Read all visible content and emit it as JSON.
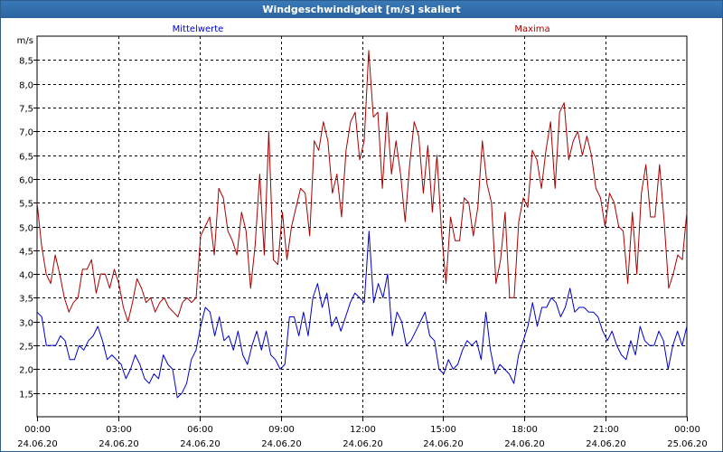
{
  "window": {
    "title": "Windgeschwindigkeit [m/s] skaliert"
  },
  "colors": {
    "series_mean": "#0000cc",
    "series_max": "#aa0000",
    "grid": "#000000"
  },
  "chart_data": {
    "type": "line",
    "ylabel": "m/s",
    "ylim": [
      1.0,
      9.0
    ],
    "y_ticks": [
      1.5,
      2.0,
      2.5,
      3.0,
      3.5,
      4.0,
      4.5,
      5.0,
      5.5,
      6.0,
      6.5,
      7.0,
      7.5,
      8.0,
      8.5
    ],
    "y_tick_labels": [
      "1,5",
      "2,0",
      "2,5",
      "3,0",
      "3,5",
      "4,0",
      "4,5",
      "5,0",
      "5,5",
      "6,0",
      "6,5",
      "7,0",
      "7,5",
      "8,0",
      "8,5"
    ],
    "x_ticks": [
      {
        "time": "00:00",
        "date": "24.06.20"
      },
      {
        "time": "03:00",
        "date": "24.06.20"
      },
      {
        "time": "06:00",
        "date": "24.06.20"
      },
      {
        "time": "09:00",
        "date": "24.06.20"
      },
      {
        "time": "12:00",
        "date": "24.06.20"
      },
      {
        "time": "15:00",
        "date": "24.06.20"
      },
      {
        "time": "18:00",
        "date": "24.06.20"
      },
      {
        "time": "21:00",
        "date": "24.06.20"
      },
      {
        "time": "00:00",
        "date": "25.06.20"
      }
    ],
    "grid": true,
    "legend_placement": "top",
    "series": [
      {
        "name": "Mittelwerte",
        "color": "#0000cc",
        "values": [
          3.2,
          3.1,
          2.5,
          2.5,
          2.5,
          2.7,
          2.6,
          2.2,
          2.2,
          2.5,
          2.4,
          2.6,
          2.7,
          2.9,
          2.6,
          2.2,
          2.3,
          2.2,
          2.1,
          1.8,
          2.0,
          2.3,
          2.1,
          1.8,
          1.7,
          1.9,
          1.8,
          2.3,
          2.1,
          2.0,
          1.4,
          1.5,
          1.7,
          2.2,
          2.4,
          2.9,
          3.3,
          3.2,
          2.7,
          3.1,
          2.6,
          2.7,
          2.4,
          2.8,
          2.3,
          2.1,
          2.5,
          2.8,
          2.4,
          2.8,
          2.3,
          2.2,
          2.0,
          2.1,
          3.1,
          3.1,
          2.7,
          3.2,
          2.7,
          3.5,
          3.8,
          3.3,
          3.6,
          2.9,
          3.1,
          2.8,
          3.1,
          3.4,
          3.6,
          3.5,
          3.4,
          4.9,
          3.4,
          3.8,
          3.5,
          4.0,
          2.7,
          3.2,
          3.0,
          2.5,
          2.6,
          2.8,
          3.0,
          3.2,
          2.7,
          2.6,
          2.0,
          1.9,
          2.2,
          2.0,
          2.1,
          2.4,
          2.6,
          2.5,
          2.6,
          2.2,
          3.2,
          2.4,
          1.9,
          2.1,
          2.0,
          1.9,
          1.7,
          2.3,
          2.6,
          2.9,
          3.4,
          2.9,
          3.3,
          3.3,
          3.5,
          3.4,
          3.1,
          3.3,
          3.7,
          3.2,
          3.3,
          3.3,
          3.2,
          3.2,
          3.1,
          2.8,
          2.6,
          2.8,
          2.5,
          2.3,
          2.2,
          2.6,
          2.3,
          2.9,
          2.6,
          2.5,
          2.5,
          2.8,
          2.6,
          2.0,
          2.5,
          2.8,
          2.5,
          2.9
        ]
      },
      {
        "name": "Maxima",
        "color": "#aa0000",
        "values": [
          5.5,
          4.6,
          4.0,
          3.8,
          4.4,
          4.0,
          3.5,
          3.2,
          3.4,
          3.5,
          4.1,
          4.1,
          4.3,
          3.6,
          4.0,
          4.0,
          3.7,
          4.1,
          3.8,
          3.3,
          3.0,
          3.4,
          3.9,
          3.7,
          3.4,
          3.5,
          3.2,
          3.4,
          3.5,
          3.3,
          3.2,
          3.1,
          3.4,
          3.5,
          3.4,
          3.5,
          4.8,
          5.0,
          5.2,
          4.4,
          5.8,
          5.6,
          4.9,
          4.7,
          4.4,
          5.3,
          4.9,
          3.7,
          4.6,
          6.1,
          4.4,
          7.0,
          4.3,
          4.2,
          5.3,
          4.3,
          5.0,
          5.4,
          5.8,
          5.7,
          4.8,
          6.8,
          6.6,
          7.2,
          6.8,
          5.7,
          6.1,
          5.2,
          6.6,
          7.2,
          7.4,
          6.4,
          6.8,
          8.7,
          7.3,
          7.4,
          5.8,
          7.4,
          6.1,
          6.8,
          6.1,
          5.1,
          6.3,
          7.2,
          6.9,
          5.7,
          6.7,
          5.3,
          6.5,
          4.9,
          3.8,
          5.2,
          4.7,
          4.7,
          5.6,
          5.5,
          4.8,
          5.4,
          6.8,
          5.9,
          5.5,
          3.8,
          4.3,
          5.3,
          3.5,
          3.5,
          5.1,
          5.6,
          5.4,
          6.6,
          6.4,
          5.8,
          6.6,
          7.2,
          5.8,
          7.4,
          7.6,
          6.4,
          6.8,
          7.0,
          6.5,
          6.9,
          6.5,
          5.8,
          5.6,
          5.0,
          5.7,
          5.5,
          5.0,
          4.9,
          3.8,
          5.3,
          4.0,
          5.7,
          6.3,
          5.2,
          5.2,
          6.3,
          5.1,
          3.7,
          4.0,
          4.4,
          4.3,
          5.3
        ]
      }
    ]
  }
}
